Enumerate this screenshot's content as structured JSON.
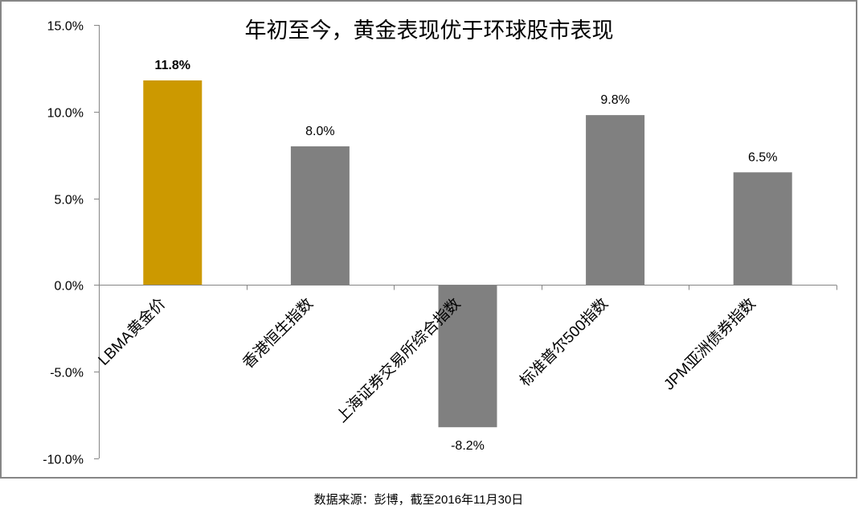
{
  "chart_data": {
    "type": "bar",
    "title": "年初至今，黄金表现优于环球股市表现",
    "xlabel": "",
    "ylabel": "",
    "categories": [
      "LBMA黄金价",
      "香港恒生指数",
      "上海证券交易所综合指数",
      "标准普尔500指数",
      "JPM亚洲债券指数"
    ],
    "values": [
      11.8,
      8.0,
      -8.2,
      9.8,
      6.5
    ],
    "data_labels": [
      "11.8%",
      "8.0%",
      "-8.2%",
      "9.8%",
      "6.5%"
    ],
    "bar_colors": [
      "#CC9900",
      "#808080",
      "#808080",
      "#808080",
      "#808080"
    ],
    "data_label_colors": [
      "#CC9900",
      "#000000",
      "#000000",
      "#000000",
      "#000000"
    ],
    "ylim": [
      -10,
      15
    ],
    "yticks": [
      15,
      10,
      5,
      0,
      -5,
      -10
    ],
    "ytick_labels": [
      "15.0%",
      "10.0%",
      "5.0%",
      "0.0%",
      "-5.0%",
      "-10.0%"
    ],
    "grid": false,
    "legend": null,
    "x_label_rotation": -45
  },
  "footer": {
    "source": "数据来源：彭博，截至2016年11月30日"
  },
  "colors": {
    "gold": "#CC9900",
    "gray_bar": "#808080",
    "axis": "#868686",
    "frame": "#868686"
  }
}
